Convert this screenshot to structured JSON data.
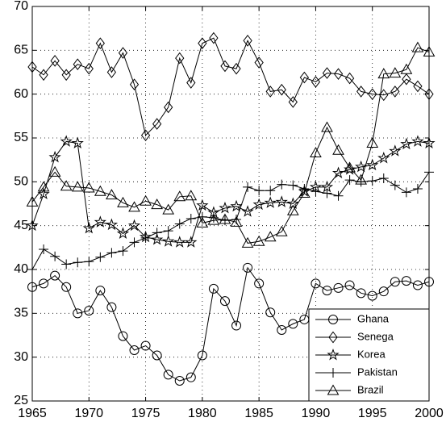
{
  "chart_data": {
    "type": "line",
    "x": [
      1965,
      1966,
      1967,
      1968,
      1969,
      1970,
      1971,
      1972,
      1973,
      1974,
      1975,
      1976,
      1977,
      1978,
      1979,
      1980,
      1981,
      1982,
      1983,
      1984,
      1985,
      1986,
      1987,
      1988,
      1989,
      1990,
      1991,
      1992,
      1993,
      1994,
      1995,
      1996,
      1997,
      1998,
      1999,
      2000
    ],
    "xlim": [
      1965,
      2000
    ],
    "xticks": [
      1965,
      1970,
      1975,
      1980,
      1985,
      1990,
      1995,
      2000
    ],
    "ylim": [
      25,
      70
    ],
    "yticks": [
      25,
      30,
      35,
      40,
      45,
      50,
      55,
      60,
      65,
      70
    ],
    "grid": true,
    "legend": "lower right",
    "series": [
      {
        "name": "Ghana",
        "color": "#000000",
        "marker": "circle",
        "values": [
          38,
          38.4,
          39.3,
          38,
          35,
          35.3,
          37.6,
          35.7,
          32.4,
          30.8,
          31.3,
          30.2,
          28,
          27.3,
          27.7,
          30.2,
          37.8,
          36.4,
          33.6,
          40.2,
          38.4,
          35.1,
          33.1,
          33.8,
          34.3,
          38.4,
          37.6,
          37.9,
          38.2,
          37.3,
          37,
          37.5,
          38.6,
          38.7,
          38.2,
          38.6
        ]
      },
      {
        "name": "Senega",
        "color": "#000000",
        "marker": "diamond",
        "values": [
          63.1,
          62.2,
          63.8,
          62.2,
          63.4,
          62.9,
          65.8,
          62.5,
          64.7,
          61.1,
          55.3,
          56.6,
          58.5,
          64.1,
          61.3,
          65.8,
          66.4,
          63.2,
          62.9,
          66.1,
          63.6,
          60.3,
          60.5,
          59.1,
          61.9,
          61.4,
          62.4,
          62.3,
          61.8,
          60.3,
          60.0,
          59.9,
          60.3,
          61.7,
          60.9,
          60.0
        ]
      },
      {
        "name": "Korea",
        "color": "#000000",
        "marker": "star",
        "values": [
          45,
          48.6,
          52.8,
          54.6,
          54.4,
          44.7,
          45.4,
          45.1,
          44.1,
          45,
          43.7,
          43.4,
          43.2,
          43.1,
          43.1,
          47.3,
          46.5,
          47,
          47.2,
          46.6,
          47.4,
          47.6,
          47.7,
          47.5,
          48.9,
          49.4,
          49.4,
          51,
          51.4,
          51.7,
          51.9,
          52.7,
          53.5,
          54.3,
          54.6,
          54.4
        ]
      },
      {
        "name": "Pakistan",
        "color": "#000000",
        "marker": "plus",
        "values": [
          40,
          42.3,
          41.5,
          40.6,
          40.8,
          40.9,
          41.4,
          41.9,
          42.1,
          43.1,
          43.6,
          44.2,
          44.4,
          45.2,
          45.8,
          46.0,
          45.9,
          45.6,
          45.7,
          49.4,
          49,
          49,
          49.7,
          49.6,
          49.2,
          48.9,
          48.7,
          48.4,
          50.2,
          50.0,
          50.1,
          50.4,
          49.6,
          48.8,
          49.2,
          51.1
        ]
      },
      {
        "name": "Brazil",
        "color": "#000000",
        "marker": "triangle",
        "values": [
          47.7,
          49.4,
          51.1,
          49.5,
          49.4,
          49.3,
          48.9,
          48.5,
          47.6,
          47.1,
          47.8,
          47.4,
          46.8,
          48.3,
          48.4,
          45.3,
          45.6,
          45.7,
          45.4,
          43,
          43.2,
          43.7,
          44.3,
          46.7,
          48.7,
          53.3,
          56.2,
          53.6,
          51.6,
          50.2,
          54.4,
          62.3,
          62.4,
          62.8,
          65.3,
          64.8
        ]
      }
    ]
  }
}
